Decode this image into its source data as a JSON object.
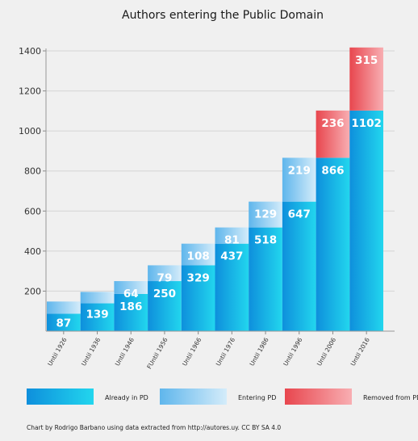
{
  "chart_data": {
    "type": "bar",
    "title": "Authors entering the Public Domain",
    "categories": [
      "Until 1926",
      "Until 1936",
      "Until 1946",
      "FUntil 1956",
      "Until 1966",
      "Until 1976",
      "Until 1986",
      "Until 1996",
      "Until 2006",
      "Until 2016"
    ],
    "series": [
      {
        "name": "Already in PD",
        "values": [
          87,
          139,
          186,
          250,
          329,
          437,
          518,
          647,
          866,
          1102
        ]
      },
      {
        "name": "Entering PD",
        "values": [
          null,
          null,
          64,
          79,
          108,
          81,
          129,
          219,
          null,
          null
        ]
      },
      {
        "name": "Removed from PD",
        "values": [
          null,
          null,
          null,
          null,
          null,
          null,
          null,
          null,
          236,
          315
        ]
      }
    ],
    "ylim": [
      0,
      1400
    ],
    "yticks": [
      200,
      400,
      600,
      800,
      1000,
      1200,
      1400
    ],
    "grid": true,
    "legend_position": "bottom",
    "colors": {
      "already": [
        "#0e8fdc",
        "#22d6ee"
      ],
      "entering": [
        "#5fb6ec",
        "#d4ecfa"
      ],
      "removed": [
        "#e8464e",
        "#f8aeb2"
      ],
      "grid": "#d4d4d4",
      "background": "#f0f0f0"
    }
  },
  "legend": {
    "already": "Already in PD",
    "entering": "Entering PD",
    "removed": "Removed from PD"
  },
  "credit": "Chart by Rodrigo Barbano using data extracted from http://autores.uy. CC BY SA 4.0"
}
